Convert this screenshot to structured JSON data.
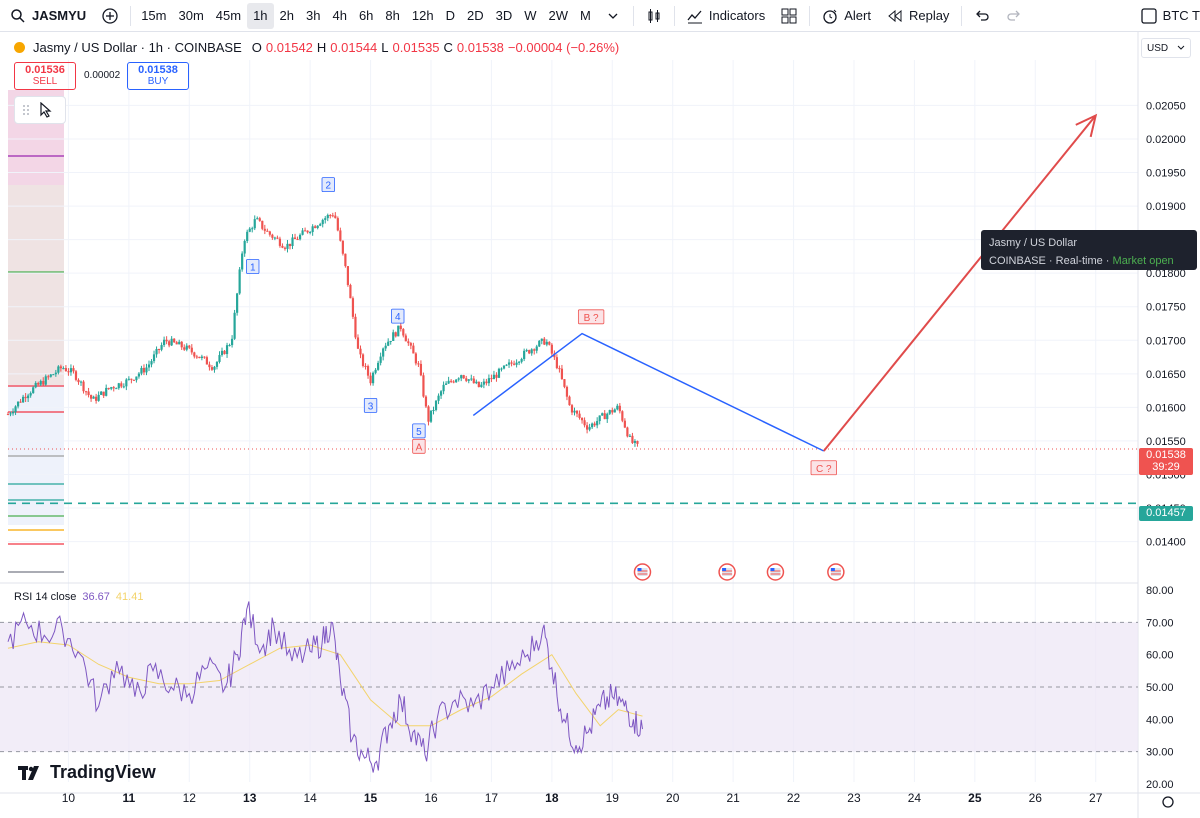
{
  "toolbar": {
    "symbol": "JASMYU",
    "timeframes": [
      "15m",
      "30m",
      "45m",
      "1h",
      "2h",
      "3h",
      "4h",
      "6h",
      "8h",
      "12h",
      "D",
      "2D",
      "3D",
      "W",
      "2W",
      "M"
    ],
    "active_timeframe": "1h",
    "indicators_label": "Indicators",
    "alert_label": "Alert",
    "replay_label": "Replay",
    "right_symbol": "BTC T"
  },
  "legend": {
    "title": "Jasmy / US Dollar · 1h · COINBASE",
    "o_label": "O",
    "o": "0.01542",
    "h_label": "H",
    "h": "0.01544",
    "l_label": "L",
    "l": "0.01535",
    "c_label": "C",
    "c": "0.01538",
    "change": "−0.00004 (−0.26%)"
  },
  "trade": {
    "sell_price": "0.01536",
    "sell_label": "SELL",
    "spread": "0.00002",
    "buy_price": "0.01538",
    "buy_label": "BUY"
  },
  "currency": "USD",
  "tooltip": {
    "title": "Jasmy / US Dollar",
    "exchange": "COINBASE",
    "feed": "Real-time",
    "status": "Market open"
  },
  "price_tags": {
    "last_price": "0.01538",
    "countdown": "39:29",
    "support_level": "0.01457"
  },
  "rsi_legend": {
    "label": "RSI 14 close",
    "rsi": "36.67",
    "ma": "41.41"
  },
  "brand": "TradingView",
  "colors": {
    "up": "#26a69a",
    "down": "#ef5350",
    "wave_up": "#2962ff",
    "projection": "#e04b4b",
    "support": "#26a69a",
    "rsi": "#7e57c2",
    "rsi_ma": "#f3d36b"
  },
  "chart_data": [
    {
      "type": "candlestick",
      "title": "Jasmy / US Dollar · 1h · COINBASE",
      "ylim": [
        0.0137,
        0.0209
      ],
      "y_ticks": [
        "0.02050",
        "0.02000",
        "0.01950",
        "0.01900",
        "0.01850",
        "0.01800",
        "0.01750",
        "0.01700",
        "0.01650",
        "0.01600",
        "0.01550",
        "0.01500",
        "0.01450",
        "0.01400"
      ],
      "x_ticks": [
        "10",
        "11",
        "12",
        "13",
        "14",
        "15",
        "16",
        "17",
        "18",
        "19",
        "20",
        "21",
        "22",
        "23",
        "24",
        "25",
        "26",
        "27"
      ],
      "x_range": [
        9.0,
        27.7
      ],
      "close_path": [
        [
          9.0,
          0.0159
        ],
        [
          9.3,
          0.0162
        ],
        [
          9.6,
          0.0164
        ],
        [
          9.9,
          0.0166
        ],
        [
          10.1,
          0.0165
        ],
        [
          10.4,
          0.0161
        ],
        [
          10.7,
          0.0163
        ],
        [
          11.0,
          0.0164
        ],
        [
          11.3,
          0.0166
        ],
        [
          11.6,
          0.017
        ],
        [
          11.9,
          0.0169
        ],
        [
          12.1,
          0.0168
        ],
        [
          12.4,
          0.0166
        ],
        [
          12.7,
          0.017
        ],
        [
          12.9,
          0.0185
        ],
        [
          13.1,
          0.0188
        ],
        [
          13.3,
          0.0186
        ],
        [
          13.6,
          0.0184
        ],
        [
          13.9,
          0.0186
        ],
        [
          14.2,
          0.0188
        ],
        [
          14.4,
          0.0189
        ],
        [
          14.6,
          0.018
        ],
        [
          14.8,
          0.0168
        ],
        [
          15.0,
          0.0164
        ],
        [
          15.2,
          0.0169
        ],
        [
          15.5,
          0.0172
        ],
        [
          15.8,
          0.0166
        ],
        [
          15.95,
          0.0158
        ],
        [
          16.2,
          0.0163
        ],
        [
          16.5,
          0.0165
        ],
        [
          16.8,
          0.0163
        ],
        [
          17.1,
          0.0165
        ],
        [
          17.4,
          0.0167
        ],
        [
          17.7,
          0.0169
        ],
        [
          17.9,
          0.017
        ],
        [
          18.1,
          0.0166
        ],
        [
          18.3,
          0.016
        ],
        [
          18.6,
          0.0157
        ],
        [
          18.9,
          0.0159
        ],
        [
          19.1,
          0.016
        ],
        [
          19.3,
          0.0155
        ],
        [
          19.45,
          0.01538
        ]
      ]
    },
    {
      "type": "line",
      "title": "RSI 14 close",
      "ylim": [
        17,
        82
      ],
      "y_ticks": [
        "80.00",
        "70.00",
        "60.00",
        "50.00",
        "40.00",
        "30.00",
        "20.00"
      ],
      "bands": [
        30,
        50,
        70
      ],
      "series": [
        {
          "name": "RSI",
          "points": [
            [
              9.0,
              64
            ],
            [
              9.3,
              70
            ],
            [
              9.6,
              66
            ],
            [
              9.9,
              68
            ],
            [
              10.2,
              60
            ],
            [
              10.5,
              44
            ],
            [
              10.8,
              58
            ],
            [
              11.1,
              47
            ],
            [
              11.4,
              55
            ],
            [
              11.7,
              50
            ],
            [
              12.0,
              48
            ],
            [
              12.3,
              56
            ],
            [
              12.6,
              50
            ],
            [
              12.8,
              60
            ],
            [
              12.95,
              74
            ],
            [
              13.2,
              62
            ],
            [
              13.4,
              69
            ],
            [
              13.7,
              58
            ],
            [
              14.0,
              61
            ],
            [
              14.2,
              64
            ],
            [
              14.35,
              70
            ],
            [
              14.5,
              52
            ],
            [
              14.7,
              34
            ],
            [
              14.9,
              28
            ],
            [
              15.1,
              27
            ],
            [
              15.3,
              38
            ],
            [
              15.5,
              46
            ],
            [
              15.7,
              36
            ],
            [
              15.9,
              29
            ],
            [
              16.1,
              40
            ],
            [
              16.4,
              46
            ],
            [
              16.7,
              44
            ],
            [
              17.0,
              50
            ],
            [
              17.3,
              55
            ],
            [
              17.6,
              60
            ],
            [
              17.85,
              68
            ],
            [
              18.0,
              56
            ],
            [
              18.2,
              40
            ],
            [
              18.4,
              32
            ],
            [
              18.6,
              36
            ],
            [
              18.8,
              44
            ],
            [
              19.0,
              47
            ],
            [
              19.2,
              44
            ],
            [
              19.35,
              40
            ],
            [
              19.5,
              37
            ]
          ]
        },
        {
          "name": "RSI MA",
          "points": [
            [
              9.0,
              62
            ],
            [
              9.5,
              64
            ],
            [
              10.0,
              63
            ],
            [
              10.5,
              57
            ],
            [
              11.0,
              53
            ],
            [
              11.5,
              51
            ],
            [
              12.0,
              51
            ],
            [
              12.5,
              52
            ],
            [
              13.0,
              57
            ],
            [
              13.5,
              62
            ],
            [
              14.0,
              63
            ],
            [
              14.5,
              60
            ],
            [
              15.0,
              46
            ],
            [
              15.5,
              38
            ],
            [
              16.0,
              38
            ],
            [
              16.5,
              43
            ],
            [
              17.0,
              47
            ],
            [
              17.5,
              54
            ],
            [
              18.0,
              60
            ],
            [
              18.4,
              48
            ],
            [
              18.8,
              38
            ],
            [
              19.1,
              43
            ],
            [
              19.5,
              41
            ]
          ]
        }
      ]
    }
  ],
  "waves": [
    {
      "label": "1",
      "x": 13.05,
      "y": 0.0181,
      "color": "#2962ff"
    },
    {
      "label": "2",
      "x": 14.3,
      "y": 0.01932,
      "color": "#2962ff"
    },
    {
      "label": "3",
      "x": 15.0,
      "y": 0.01603,
      "color": "#2962ff"
    },
    {
      "label": "4",
      "x": 15.45,
      "y": 0.01736,
      "color": "#2962ff"
    },
    {
      "label": "5",
      "x": 15.8,
      "y": 0.01565,
      "color": "#2962ff"
    },
    {
      "label": "A",
      "x": 15.8,
      "y": 0.01542,
      "color": "#ef5350"
    },
    {
      "label": "B ?",
      "x": 18.65,
      "y": 0.01735,
      "color": "#ef5350"
    },
    {
      "label": "C ?",
      "x": 22.5,
      "y": 0.0151,
      "color": "#ef5350"
    }
  ],
  "wave_path_points": [
    [
      16.7,
      0.01588
    ],
    [
      18.5,
      0.0171
    ],
    [
      22.5,
      0.01535
    ]
  ],
  "projection_points": [
    [
      22.5,
      0.01535
    ],
    [
      27.0,
      0.02035
    ]
  ],
  "support_level": 0.01457,
  "last_price": 0.01538,
  "event_markers": [
    19.5,
    20.9,
    21.7,
    22.7
  ]
}
